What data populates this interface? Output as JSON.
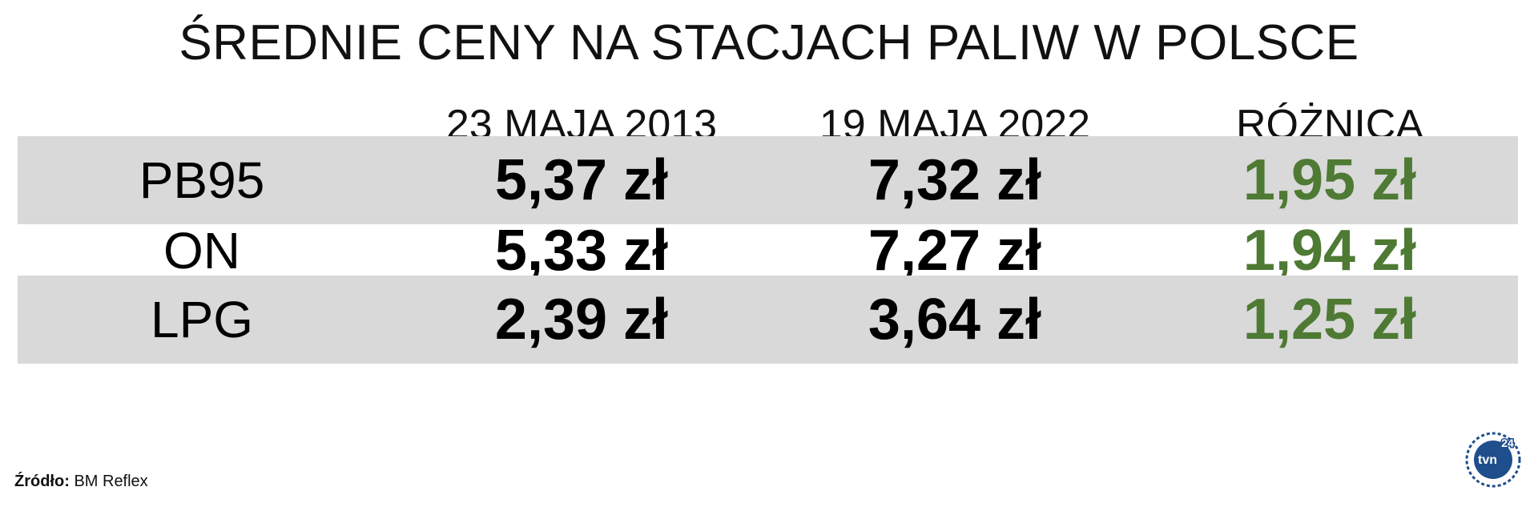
{
  "title": "ŚREDNIE CENY NA STACJACH PALIW W POLSCE",
  "columns": [
    "23 MAJA 2013",
    "19 MAJA 2022",
    "RÓŻNICA"
  ],
  "rows": [
    {
      "fuel": "PB95",
      "v2013": "5,37 zł",
      "v2022": "7,32 zł",
      "diff": "1,95 zł"
    },
    {
      "fuel": "ON",
      "v2013": "5,33 zł",
      "v2022": "7,27 zł",
      "diff": "1,94 zł"
    },
    {
      "fuel": "LPG",
      "v2013": "2,39 zł",
      "v2022": "3,64 zł",
      "diff": "1,25 zł"
    }
  ],
  "source": {
    "label": "Źródło:",
    "value": "BM Reflex"
  },
  "logo": {
    "text": "tvn24"
  },
  "colors": {
    "diff": "#4e7a34",
    "row_shade": "#d9d9d9",
    "logo": "#1f4e8c"
  },
  "chart_data": {
    "type": "table",
    "title": "ŚREDNIE CENY NA STACJACH PALIW W POLSCE",
    "columns": [
      "",
      "23 MAJA 2013",
      "19 MAJA 2022",
      "RÓŻNICA"
    ],
    "categories": [
      "PB95",
      "ON",
      "LPG"
    ],
    "series": [
      {
        "name": "23 MAJA 2013",
        "values": [
          5.37,
          5.33,
          2.39
        ]
      },
      {
        "name": "19 MAJA 2022",
        "values": [
          7.32,
          7.27,
          3.64
        ]
      },
      {
        "name": "RÓŻNICA",
        "values": [
          1.95,
          1.94,
          1.25
        ]
      }
    ],
    "unit": "zł"
  }
}
